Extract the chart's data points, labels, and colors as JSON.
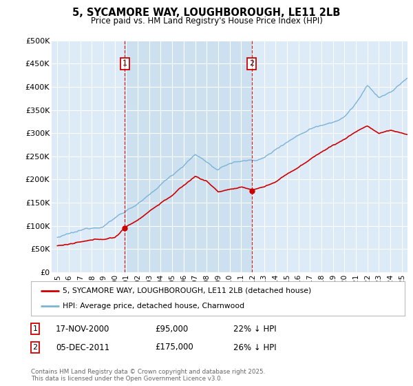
{
  "title": "5, SYCAMORE WAY, LOUGHBOROUGH, LE11 2LB",
  "subtitle": "Price paid vs. HM Land Registry's House Price Index (HPI)",
  "background_color": "#ddeaf7",
  "highlight_color": "#cce0f0",
  "hpi_color": "#7ab3d8",
  "price_color": "#cc0000",
  "ylim": [
    0,
    500000
  ],
  "yticks": [
    0,
    50000,
    100000,
    150000,
    200000,
    250000,
    300000,
    350000,
    400000,
    450000,
    500000
  ],
  "ytick_labels": [
    "£0",
    "£50K",
    "£100K",
    "£150K",
    "£200K",
    "£250K",
    "£300K",
    "£350K",
    "£400K",
    "£450K",
    "£500K"
  ],
  "marker1_date": "17-NOV-2000",
  "marker1_price": 95000,
  "marker1_hpi_diff": "22% ↓ HPI",
  "marker1_x": 2000.88,
  "marker2_date": "05-DEC-2011",
  "marker2_price": 175000,
  "marker2_hpi_diff": "26% ↓ HPI",
  "marker2_x": 2011.92,
  "legend_label1": "5, SYCAMORE WAY, LOUGHBOROUGH, LE11 2LB (detached house)",
  "legend_label2": "HPI: Average price, detached house, Charnwood",
  "footnote": "Contains HM Land Registry data © Crown copyright and database right 2025.\nThis data is licensed under the Open Government Licence v3.0.",
  "xmin": 1994.5,
  "xmax": 2025.5
}
